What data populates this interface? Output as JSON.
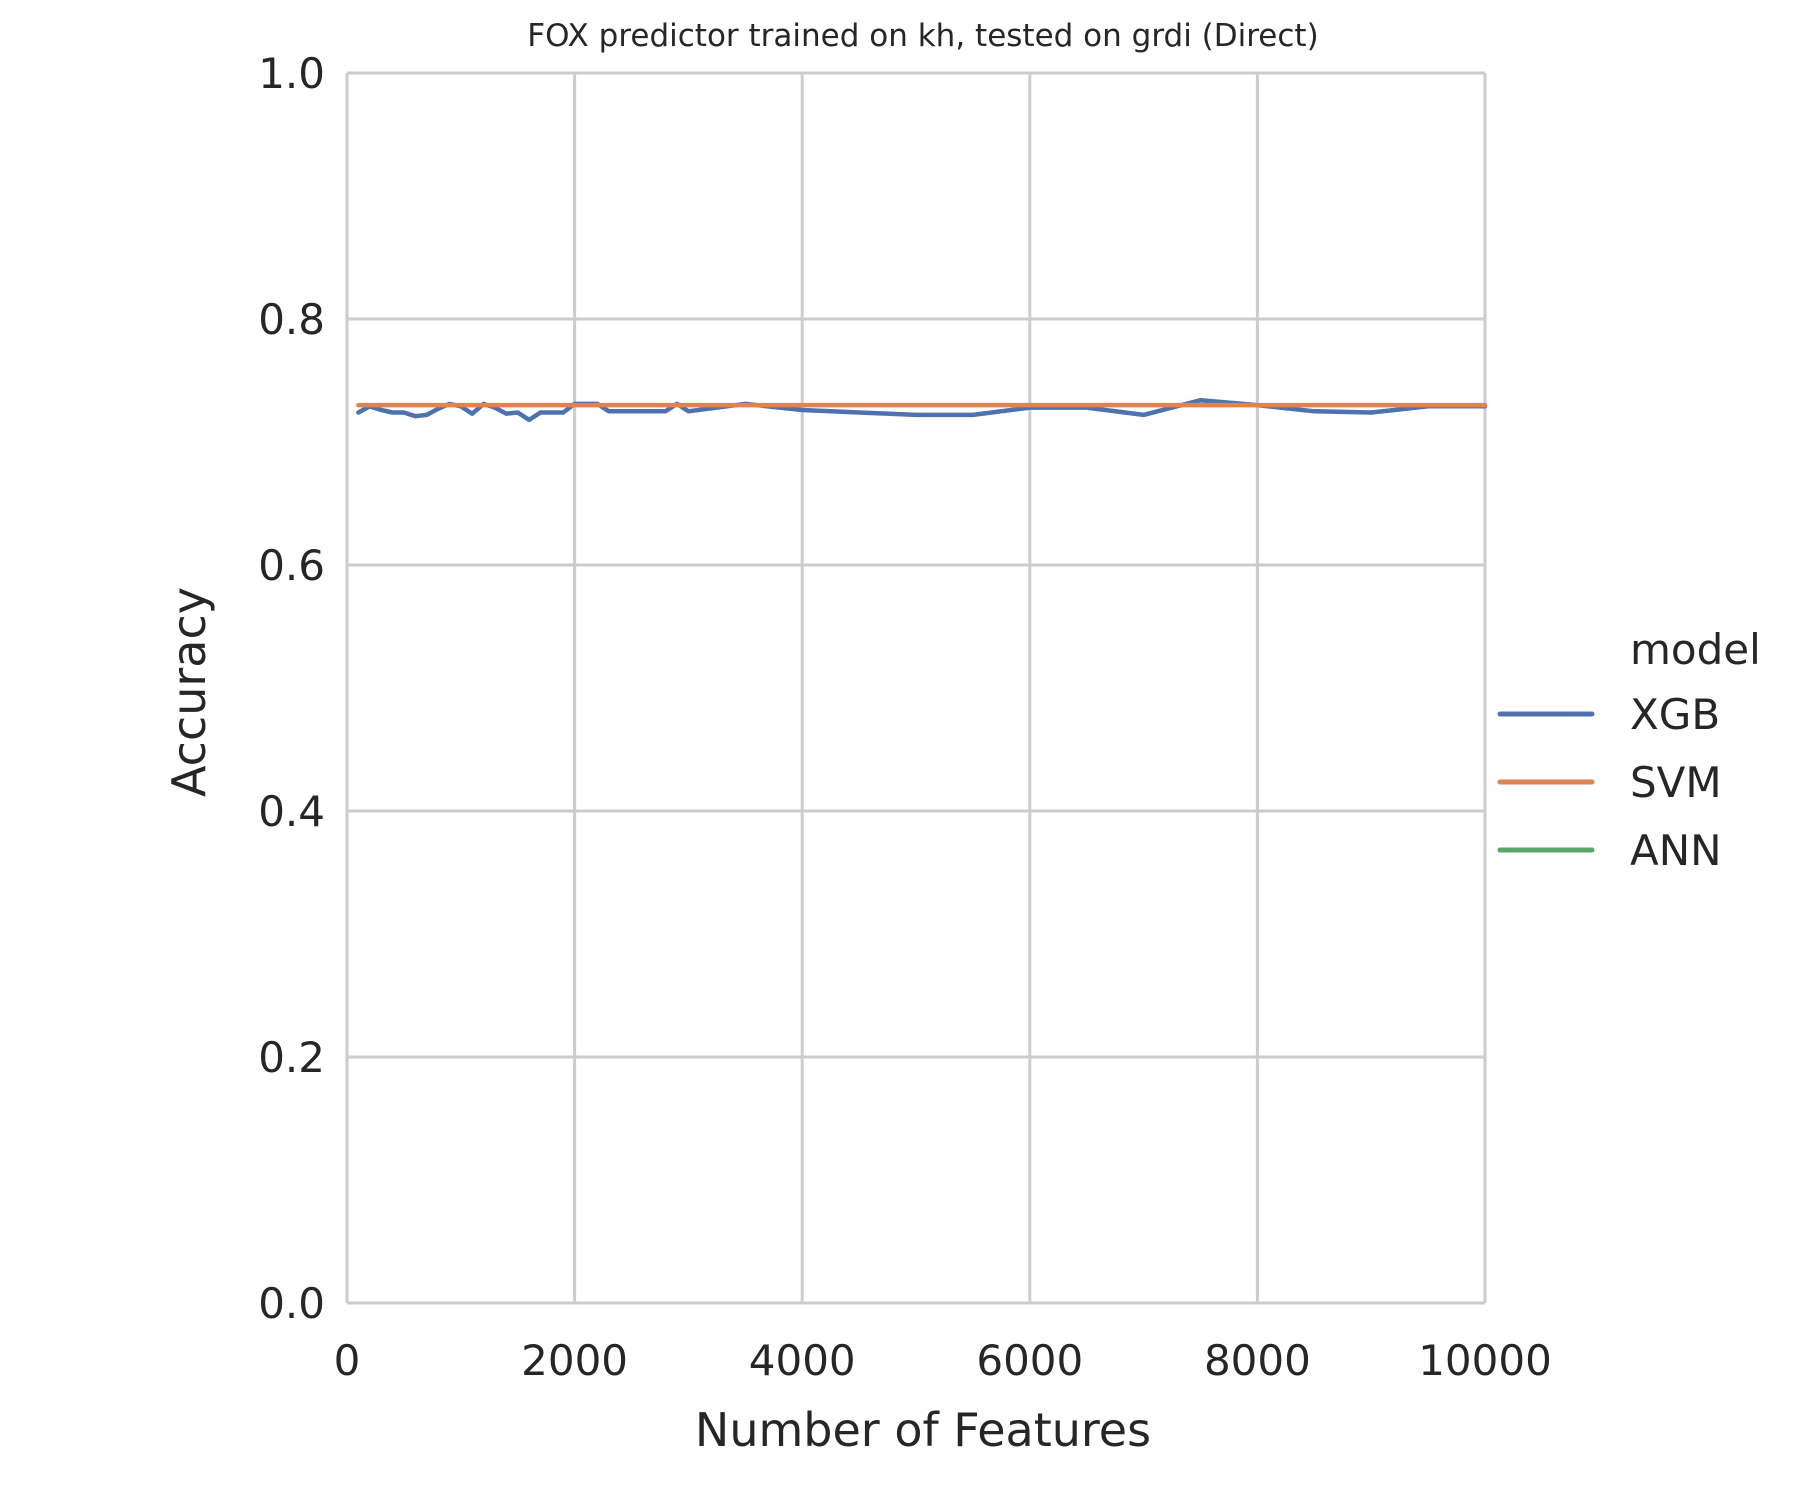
{
  "chart_data": {
    "type": "line",
    "title": "FOX predictor trained on kh, tested on grdi (Direct)",
    "xlabel": "Number of Features",
    "ylabel": "Accuracy",
    "xlim": [
      0,
      10000
    ],
    "ylim": [
      0,
      1.0
    ],
    "xticks": [
      0,
      2000,
      4000,
      6000,
      8000,
      10000
    ],
    "xtick_labels": [
      "0",
      "2000",
      "4000",
      "6000",
      "8000",
      "10000"
    ],
    "yticks": [
      0,
      0.2,
      0.4,
      0.6,
      0.8,
      1.0
    ],
    "ytick_labels": [
      "0.0",
      "0.2",
      "0.4",
      "0.6",
      "0.8",
      "1.0"
    ],
    "grid": true,
    "legend": {
      "title": "model",
      "placement": "right",
      "entries": [
        "XGB",
        "SVM",
        "ANN"
      ]
    },
    "series": [
      {
        "name": "XGB",
        "color": "#4c72b0",
        "x": [
          100,
          200,
          300,
          400,
          500,
          600,
          700,
          800,
          900,
          1000,
          1100,
          1200,
          1300,
          1400,
          1500,
          1600,
          1700,
          1800,
          1900,
          2000,
          2100,
          2200,
          2300,
          2400,
          2500,
          2600,
          2700,
          2800,
          2900,
          3000,
          3500,
          4000,
          4500,
          5000,
          5500,
          6000,
          6500,
          7000,
          7500,
          8000,
          8500,
          9000,
          9500,
          10000
        ],
        "y": [
          0.724,
          0.729,
          0.726,
          0.724,
          0.724,
          0.721,
          0.722,
          0.727,
          0.731,
          0.729,
          0.723,
          0.731,
          0.728,
          0.723,
          0.724,
          0.718,
          0.724,
          0.724,
          0.724,
          0.731,
          0.731,
          0.731,
          0.725,
          0.725,
          0.725,
          0.725,
          0.725,
          0.725,
          0.731,
          0.725,
          0.731,
          0.726,
          0.724,
          0.722,
          0.722,
          0.728,
          0.728,
          0.722,
          0.734,
          0.73,
          0.725,
          0.724,
          0.729,
          0.729
        ]
      },
      {
        "name": "SVM",
        "color": "#dd8452",
        "x": [
          100,
          10000
        ],
        "y": [
          0.73,
          0.73
        ]
      },
      {
        "name": "ANN",
        "color": "#55a868",
        "x": [],
        "y": []
      }
    ]
  }
}
